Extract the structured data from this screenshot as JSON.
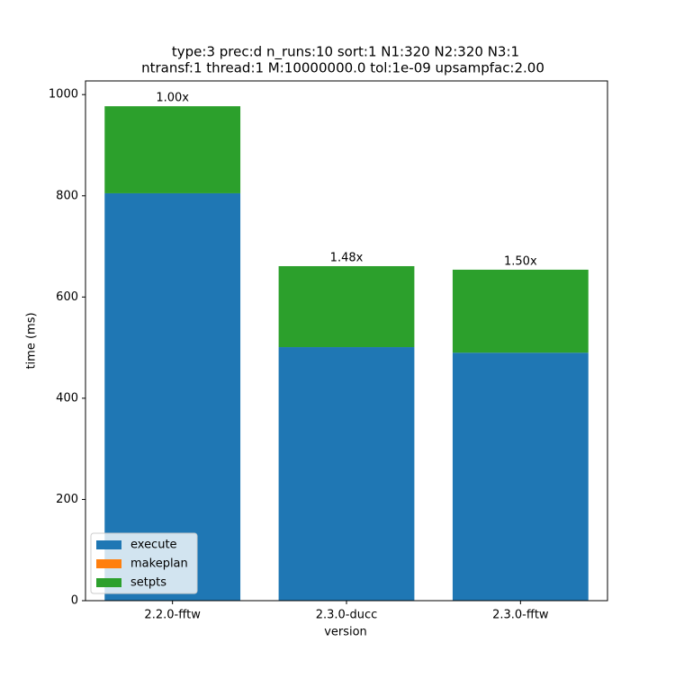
{
  "chart_data": {
    "type": "stacked_bar",
    "title": [
      "type:3 prec:d n_runs:10 sort:1 N1:320 N2:320 N3:1",
      "ntransf:1 thread:1 M:10000000.0 tol:1e-09 upsampfac:2.00"
    ],
    "xlabel": "version",
    "ylabel": "time (ms)",
    "categories": [
      "2.2.0-fftw",
      "2.3.0-ducc",
      "2.3.0-fftw"
    ],
    "series": [
      {
        "name": "execute",
        "color": "#1f77b4",
        "values": [
          805,
          501,
          490
        ]
      },
      {
        "name": "makeplan",
        "color": "#ff7f0e",
        "values": [
          0,
          0,
          0
        ]
      },
      {
        "name": "setpts",
        "color": "#2ca02c",
        "values": [
          172,
          160,
          164
        ]
      }
    ],
    "annotations": [
      "1.00x",
      "1.48x",
      "1.50x"
    ],
    "ylim": [
      0,
      1027
    ],
    "yticks": [
      0,
      200,
      400,
      600,
      800,
      1000
    ],
    "legend": "lower left"
  }
}
